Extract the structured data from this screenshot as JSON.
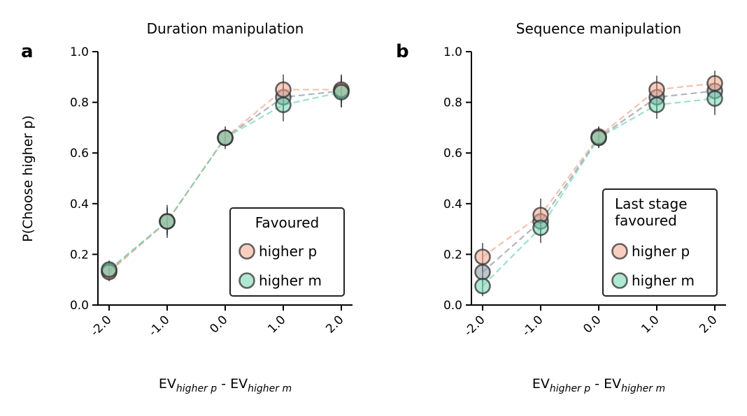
{
  "colors": {
    "higher_p": "#f4a58c",
    "higher_m": "#6fd6b0",
    "pooled": "#8a96a4",
    "point_edge": "#333333",
    "errorbar": "#3a3a3a"
  },
  "shared": {
    "ylabel": "P(Choose higher p)",
    "xlabel_ev": "EV",
    "xlabel_sub1": "higher p",
    "xlabel_minus": " - ",
    "xlabel_sub2": "higher m"
  },
  "chart_data": [
    {
      "type": "line",
      "panel_letter": "a",
      "title": "Duration manipulation",
      "x": [
        "-2.0",
        "-1.0",
        "0.0",
        "1.0",
        "2.0"
      ],
      "ylim": [
        0.0,
        1.0
      ],
      "yticks": [
        "0.0",
        "0.2",
        "0.4",
        "0.6",
        "0.8",
        "1.0"
      ],
      "legend": {
        "title": "Favoured",
        "position": "lower-right"
      },
      "series": [
        {
          "name": "higher p",
          "color_key": "higher_p",
          "values": [
            0.13,
            0.33,
            0.66,
            0.85,
            0.85
          ],
          "err": [
            0.035,
            0.055,
            0.03,
            0.06,
            0.055
          ]
        },
        {
          "color_key": "pooled",
          "values": [
            0.135,
            0.33,
            0.66,
            0.82,
            0.845
          ],
          "err": [
            0.04,
            0.065,
            0.045,
            0.06,
            0.065
          ]
        },
        {
          "name": "higher m",
          "color_key": "higher_m",
          "values": [
            0.14,
            0.33,
            0.66,
            0.79,
            0.84
          ],
          "err": [
            0.035,
            0.05,
            0.035,
            0.065,
            0.06
          ]
        }
      ]
    },
    {
      "type": "line",
      "panel_letter": "b",
      "title": "Sequence manipulation",
      "x": [
        "-2.0",
        "-1.0",
        "0.0",
        "1.0",
        "2.0"
      ],
      "ylim": [
        0.0,
        1.0
      ],
      "yticks": [
        "0.0",
        "0.2",
        "0.4",
        "0.6",
        "0.8",
        "1.0"
      ],
      "legend": {
        "title_lines": [
          "Last stage",
          "favoured"
        ],
        "position": "lower-right"
      },
      "series": [
        {
          "name": "higher p",
          "color_key": "higher_p",
          "values": [
            0.19,
            0.355,
            0.665,
            0.85,
            0.875
          ],
          "err": [
            0.055,
            0.065,
            0.04,
            0.055,
            0.05
          ]
        },
        {
          "color_key": "pooled",
          "values": [
            0.13,
            0.33,
            0.66,
            0.82,
            0.845
          ],
          "err": [
            0.04,
            0.055,
            0.04,
            0.055,
            0.055
          ]
        },
        {
          "name": "higher m",
          "color_key": "higher_m",
          "values": [
            0.075,
            0.305,
            0.66,
            0.79,
            0.815
          ],
          "err": [
            0.04,
            0.06,
            0.04,
            0.055,
            0.065
          ]
        }
      ]
    }
  ]
}
